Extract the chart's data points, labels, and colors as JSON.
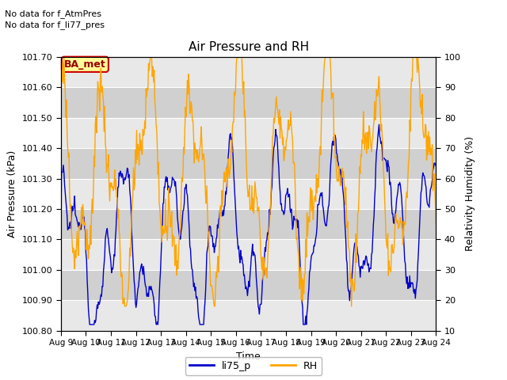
{
  "title": "Air Pressure and RH",
  "ylabel_left": "Air Pressure (kPa)",
  "ylabel_right": "Relativity Humidity (%)",
  "xlabel": "Time",
  "no_data_text_1": "No data for f_AtmPres",
  "no_data_text_2": "No data for f_li77_pres",
  "ba_met_label": "BA_met",
  "ylim_left": [
    100.8,
    101.7
  ],
  "ylim_right": [
    10,
    100
  ],
  "yticks_left": [
    100.8,
    100.9,
    101.0,
    101.1,
    101.2,
    101.3,
    101.4,
    101.5,
    101.6,
    101.7
  ],
  "yticks_right": [
    10,
    20,
    30,
    40,
    50,
    60,
    70,
    80,
    90,
    100
  ],
  "xtick_labels": [
    "Aug 9",
    "Aug 10",
    "Aug 11",
    "Aug 12",
    "Aug 13",
    "Aug 14",
    "Aug 15",
    "Aug 16",
    "Aug 17",
    "Aug 18",
    "Aug 19",
    "Aug 20",
    "Aug 21",
    "Aug 22",
    "Aug 23",
    "Aug 24"
  ],
  "line_blue_color": "#0000cc",
  "line_orange_color": "#ffa500",
  "legend_blue_label": "li75_p",
  "legend_orange_label": "RH",
  "background_light": "#e8e8e8",
  "background_dark": "#d0d0d0",
  "fig_background": "#ffffff",
  "grid_color": "#ffffff",
  "ba_met_bg": "#ffff99",
  "ba_met_border": "#cc0000",
  "ba_met_text_color": "#990000",
  "n_days": 15,
  "n_points": 600
}
